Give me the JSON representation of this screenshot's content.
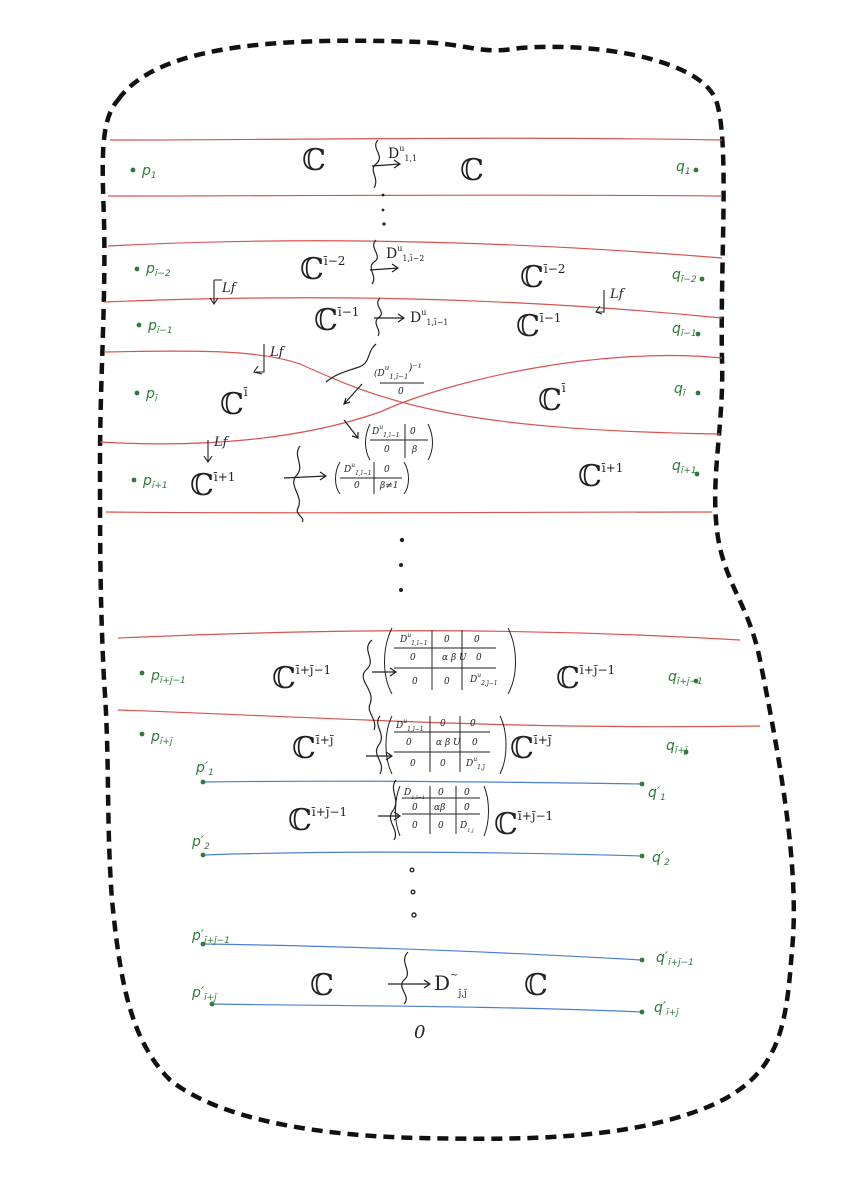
{
  "colors": {
    "boundary": "#111111",
    "red_line": "#d9534f",
    "blue_line": "#4a7fd4",
    "green": "#2f7a3a",
    "ink": "#222222"
  },
  "sheets": {
    "row1": {
      "left": "ℂ",
      "right": "ℂ",
      "map": "D",
      "map_sup": "u",
      "map_sub": "1,1"
    },
    "row_i2": {
      "left": "ℂ",
      "left_sup": "ī−2",
      "right": "ℂ",
      "right_sup": "ī−2",
      "map": "D",
      "map_sup": "u",
      "map_sub": "1,ī−2"
    },
    "row_i1": {
      "left": "ℂ",
      "left_sup": "ī−1",
      "right": "ℂ",
      "right_sup": "ī−1",
      "map": "D",
      "map_sup": "u",
      "map_sub": "1,ī−1"
    },
    "row_i": {
      "left": "ℂ",
      "left_sup": "ī",
      "right": "ℂ",
      "right_sup": "ī",
      "mat_top": "(D",
      "mat_top_sup": "u",
      "mat_top_sub": "1,ī−1",
      "mat_top_inv": ")⁻¹",
      "mat_zero": "0"
    },
    "row_ip1": {
      "left": "ℂ",
      "left_sup": "ī+1",
      "right": "ℂ",
      "right_sup": "ī+1",
      "mat_a": "D",
      "mat_a_sup": "u",
      "mat_a_sub": "1,ī−1",
      "zero": "0",
      "beta": "β",
      "beta2": "β≠1"
    },
    "row_ij1": {
      "left": "ℂ",
      "left_sup": "ī+j̄−1",
      "right": "ℂ",
      "right_sup": "ī+j̄−1",
      "d1": "D",
      "d1_sub": "1,ī−1",
      "d2": "D",
      "d2_sub": "2,j̄−1",
      "zero": "0",
      "alpha": "α",
      "b": "β",
      "u": "U",
      "sup_u": "u"
    },
    "row_ij": {
      "left": "ℂ",
      "left_sup": "ī+j̄",
      "right": "ℂ",
      "right_sup": "ī+j̄",
      "d1": "D",
      "d1_sub": "1,ī−1",
      "d2": "D",
      "d2_sub": "1,j̄",
      "zero": "0",
      "alpha": "α",
      "b": "β",
      "u": "U",
      "sup_u": "u"
    },
    "row_blue1": {
      "left": "ℂ",
      "left_sup": "ī+j̄−1",
      "right": "ℂ",
      "right_sup": "ī+j̄−1",
      "d1": "D",
      "d1_sub": "1,ī−1",
      "d2": "D",
      "d2_sub": "1,j̄",
      "zero": "0",
      "alpha": "α",
      "b": "β",
      "u": "U"
    },
    "row_last": {
      "left": "ℂ",
      "right": "ℂ",
      "map": "D",
      "map_sup": "~",
      "map_sub": "j̄,j̄"
    }
  },
  "lf": "Lf",
  "arrow": "→",
  "zero_bottom": "0",
  "left_labels": [
    {
      "main": "p",
      "sub": "1"
    },
    {
      "main": "p",
      "sub": "ī−2"
    },
    {
      "main": "p",
      "sub": "ī−1"
    },
    {
      "main": "p",
      "sub": "ī"
    },
    {
      "main": "p",
      "sub": "ī+1"
    },
    {
      "main": "p",
      "sub": "ī+j̄−1"
    },
    {
      "main": "p",
      "sub": "ī+j̄"
    }
  ],
  "right_labels": [
    {
      "main": "q",
      "sub": "1"
    },
    {
      "main": "q",
      "sub": "ī−2"
    },
    {
      "main": "q",
      "sub": "ī−1"
    },
    {
      "main": "q",
      "sub": "ī"
    },
    {
      "main": "q",
      "sub": "ī+1"
    },
    {
      "main": "q",
      "sub": "ī+j̄−1"
    },
    {
      "main": "q",
      "sub": "ī+j̄"
    }
  ],
  "blue_left_labels": [
    {
      "main": "p′",
      "sub": "1"
    },
    {
      "main": "p′",
      "sub": "2"
    },
    {
      "main": "p′",
      "sub": "ī+j̄−1"
    },
    {
      "main": "p′",
      "sub": "ī+j̄"
    }
  ],
  "blue_right_labels": [
    {
      "main": "q′",
      "sub": "1"
    },
    {
      "main": "q′",
      "sub": "2"
    },
    {
      "main": "q′",
      "sub": "ī+j̄−1"
    },
    {
      "main": "q′",
      "sub": "ī+j̄"
    }
  ]
}
